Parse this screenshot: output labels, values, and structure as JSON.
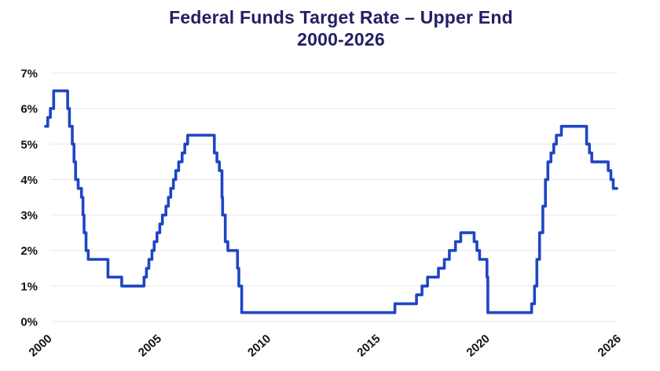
{
  "chart_data": {
    "type": "line",
    "title": "Federal Funds Target Rate – Upper End",
    "subtitle": "2000-2026",
    "xlabel": "",
    "ylabel": "",
    "legend": "none",
    "grid": "horizontal",
    "interpolation": "step-after",
    "x_range": [
      2000,
      2026.1
    ],
    "y_range": [
      0,
      7
    ],
    "x_ticks": [
      {
        "value": 2000,
        "label": "2000"
      },
      {
        "value": 2005,
        "label": "2005"
      },
      {
        "value": 2010,
        "label": "2010"
      },
      {
        "value": 2015,
        "label": "2015"
      },
      {
        "value": 2020,
        "label": "2020"
      },
      {
        "value": 2026,
        "label": "2026"
      }
    ],
    "y_ticks": [
      {
        "value": 0,
        "label": "0%"
      },
      {
        "value": 1,
        "label": "1%"
      },
      {
        "value": 2,
        "label": "2%"
      },
      {
        "value": 3,
        "label": "3%"
      },
      {
        "value": 4,
        "label": "4%"
      },
      {
        "value": 5,
        "label": "5%"
      },
      {
        "value": 6,
        "label": "6%"
      },
      {
        "value": 7,
        "label": "7%"
      }
    ],
    "colors": {
      "line": "#1f45c4",
      "grid": "#e7e7e7",
      "title": "#232064",
      "axis_labels": "#141414",
      "background": "#ffffff"
    },
    "series": [
      {
        "name": "Federal Funds Target Rate – Upper End (%)",
        "points": [
          [
            2000.0,
            5.5
          ],
          [
            2000.1,
            5.75
          ],
          [
            2000.22,
            6.0
          ],
          [
            2000.37,
            6.5
          ],
          [
            2001.01,
            6.0
          ],
          [
            2001.09,
            5.5
          ],
          [
            2001.22,
            5.0
          ],
          [
            2001.3,
            4.5
          ],
          [
            2001.37,
            4.0
          ],
          [
            2001.49,
            3.75
          ],
          [
            2001.64,
            3.5
          ],
          [
            2001.71,
            3.0
          ],
          [
            2001.76,
            2.5
          ],
          [
            2001.85,
            2.0
          ],
          [
            2001.95,
            1.75
          ],
          [
            2002.85,
            1.25
          ],
          [
            2003.48,
            1.0
          ],
          [
            2004.5,
            1.25
          ],
          [
            2004.61,
            1.5
          ],
          [
            2004.72,
            1.75
          ],
          [
            2004.86,
            2.0
          ],
          [
            2004.96,
            2.25
          ],
          [
            2005.09,
            2.5
          ],
          [
            2005.22,
            2.75
          ],
          [
            2005.34,
            3.0
          ],
          [
            2005.5,
            3.25
          ],
          [
            2005.61,
            3.5
          ],
          [
            2005.72,
            3.75
          ],
          [
            2005.84,
            4.0
          ],
          [
            2005.95,
            4.25
          ],
          [
            2006.08,
            4.5
          ],
          [
            2006.24,
            4.75
          ],
          [
            2006.36,
            5.0
          ],
          [
            2006.49,
            5.25
          ],
          [
            2007.71,
            4.75
          ],
          [
            2007.83,
            4.5
          ],
          [
            2007.94,
            4.25
          ],
          [
            2008.06,
            3.5
          ],
          [
            2008.09,
            3.0
          ],
          [
            2008.21,
            2.25
          ],
          [
            2008.33,
            2.0
          ],
          [
            2008.77,
            1.5
          ],
          [
            2008.83,
            1.0
          ],
          [
            2008.96,
            0.25
          ],
          [
            2015.96,
            0.5
          ],
          [
            2016.95,
            0.75
          ],
          [
            2017.2,
            1.0
          ],
          [
            2017.45,
            1.25
          ],
          [
            2017.95,
            1.5
          ],
          [
            2018.22,
            1.75
          ],
          [
            2018.45,
            2.0
          ],
          [
            2018.73,
            2.25
          ],
          [
            2018.97,
            2.5
          ],
          [
            2019.58,
            2.25
          ],
          [
            2019.71,
            2.0
          ],
          [
            2019.83,
            1.75
          ],
          [
            2020.17,
            1.25
          ],
          [
            2020.21,
            0.25
          ],
          [
            2022.21,
            0.5
          ],
          [
            2022.34,
            1.0
          ],
          [
            2022.45,
            1.75
          ],
          [
            2022.57,
            2.5
          ],
          [
            2022.72,
            3.25
          ],
          [
            2022.84,
            4.0
          ],
          [
            2022.95,
            4.5
          ],
          [
            2023.09,
            4.75
          ],
          [
            2023.22,
            5.0
          ],
          [
            2023.34,
            5.25
          ],
          [
            2023.57,
            5.5
          ],
          [
            2024.72,
            5.0
          ],
          [
            2024.85,
            4.75
          ],
          [
            2024.96,
            4.5
          ],
          [
            2025.71,
            4.25
          ],
          [
            2025.83,
            4.0
          ],
          [
            2025.94,
            3.75
          ],
          [
            2026.1,
            3.75
          ]
        ]
      }
    ]
  }
}
